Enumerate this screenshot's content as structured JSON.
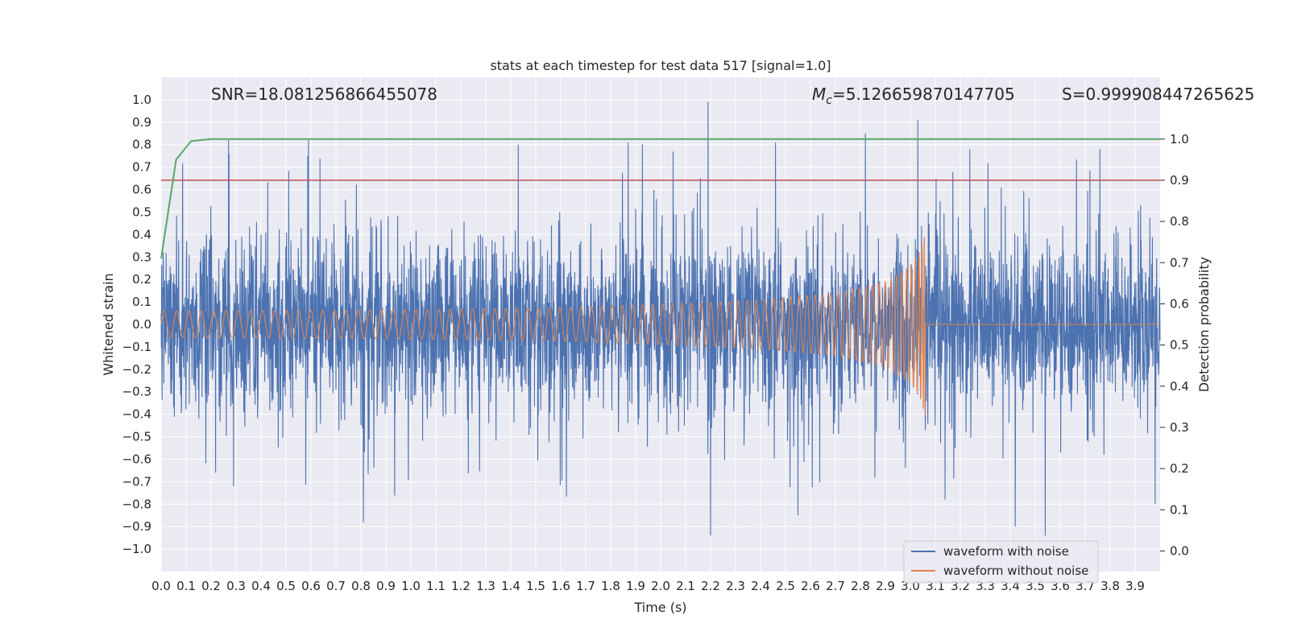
{
  "chart_data": {
    "type": "line",
    "title": "stats at each timestep for test data 517 [signal=1.0]",
    "xlabel": "Time (s)",
    "ylabel": "Whitened strain",
    "y2label": "Detection probability",
    "xlim": [
      0.0,
      4.0
    ],
    "ylim": [
      -1.1,
      1.1
    ],
    "y2lim": [
      -0.05,
      1.15
    ],
    "x_ticks": [
      "0.0",
      "0.1",
      "0.2",
      "0.3",
      "0.4",
      "0.5",
      "0.6",
      "0.7",
      "0.8",
      "0.9",
      "1.0",
      "1.1",
      "1.2",
      "1.3",
      "1.4",
      "1.5",
      "1.6",
      "1.7",
      "1.8",
      "1.9",
      "2.0",
      "2.1",
      "2.2",
      "2.3",
      "2.4",
      "2.5",
      "2.6",
      "2.7",
      "2.8",
      "2.9",
      "3.0",
      "3.1",
      "3.2",
      "3.3",
      "3.4",
      "3.5",
      "3.6",
      "3.7",
      "3.8",
      "3.9"
    ],
    "y_ticks": [
      "1.0",
      "0.9",
      "0.8",
      "0.7",
      "0.6",
      "0.5",
      "0.4",
      "0.3",
      "0.2",
      "0.1",
      "0.0",
      "−0.1",
      "−0.2",
      "−0.3",
      "−0.4",
      "−0.5",
      "−0.6",
      "−0.7",
      "−0.8",
      "−0.9",
      "−1.0"
    ],
    "y2_ticks": [
      "1.0",
      "0.9",
      "0.8",
      "0.7",
      "0.6",
      "0.5",
      "0.4",
      "0.3",
      "0.2",
      "0.1",
      "0.0"
    ],
    "grid": true,
    "legend_position": "bottom-right",
    "annotations": {
      "snr": "SNR=18.081256866455078",
      "mc_symbol": "M",
      "mc_subscript": "c",
      "mc_value": "=5.126659870147705",
      "s": "S=0.999908447265625"
    },
    "series": [
      {
        "name": "waveform with noise",
        "color": "#4c72b0",
        "axis": "left",
        "description": "whitened noisy strain, roughly within [-0.95, 1.0]",
        "peaks": [
          [
            0.27,
            0.82
          ],
          [
            0.29,
            -0.72
          ],
          [
            0.59,
            0.82
          ],
          [
            0.81,
            -0.88
          ],
          [
            1.43,
            0.8
          ],
          [
            1.87,
            0.81
          ],
          [
            2.19,
            0.99
          ],
          [
            2.2,
            -0.94
          ],
          [
            2.46,
            0.81
          ],
          [
            2.55,
            -0.85
          ],
          [
            2.82,
            0.85
          ],
          [
            3.03,
            0.91
          ],
          [
            3.42,
            -0.9
          ],
          [
            3.54,
            -0.94
          ],
          [
            3.98,
            -0.8
          ]
        ]
      },
      {
        "name": "waveform without noise",
        "color": "#dd8452",
        "axis": "left",
        "description": "inspiral chirp ending in merger near t=3.06 s",
        "envelope": [
          [
            0.0,
            0.06
          ],
          [
            1.0,
            0.065
          ],
          [
            1.6,
            0.075
          ],
          [
            2.0,
            0.09
          ],
          [
            2.4,
            0.11
          ],
          [
            2.7,
            0.14
          ],
          [
            2.9,
            0.19
          ],
          [
            3.0,
            0.26
          ],
          [
            3.04,
            0.33
          ],
          [
            3.06,
            0.41
          ]
        ],
        "merger_time": 3.06,
        "freq_start": 20,
        "freq_end": 140
      },
      {
        "name": "detection probability",
        "color": "#55a868",
        "axis": "right",
        "x": [
          0.0,
          0.06,
          0.12,
          0.2,
          4.0
        ],
        "y": [
          0.71,
          0.95,
          0.995,
          1.0,
          1.0
        ]
      }
    ],
    "threshold": {
      "color": "#c44e52",
      "axis": "right",
      "value": 0.9
    },
    "colors": {
      "plot_background": "#eaeaf2",
      "grid": "#ffffff",
      "noisy": "#4c72b0",
      "clean": "#dd8452",
      "probability": "#55a868",
      "threshold": "#c44e52"
    }
  }
}
